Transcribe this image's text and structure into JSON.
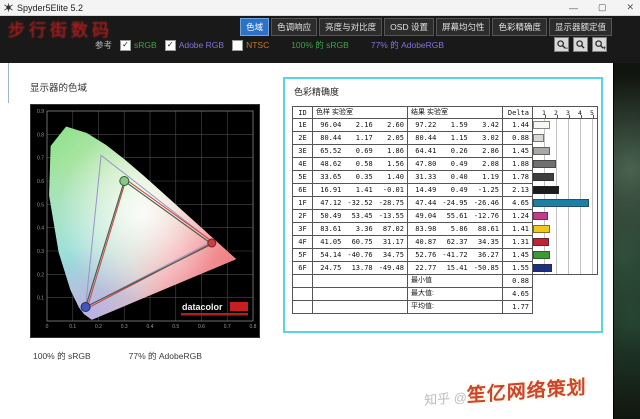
{
  "window": {
    "title": "Spyder5Elite 5.2",
    "controls": {
      "minimize": "—",
      "maximize": "▢",
      "close": "✕"
    }
  },
  "watermark_top": {
    "text": "步行街数码",
    "color": "#9c1d1d"
  },
  "tabs": [
    {
      "label": "色域",
      "active": true
    },
    {
      "label": "色调响应",
      "active": false
    },
    {
      "label": "亮度与对比度",
      "active": false
    },
    {
      "label": "OSD 设置",
      "active": false
    },
    {
      "label": "屏幕均匀性",
      "active": false
    },
    {
      "label": "色彩精确度",
      "active": false
    },
    {
      "label": "显示器额定值",
      "active": false
    }
  ],
  "reference": {
    "label": "参考",
    "checkboxes": [
      {
        "label": "sRGB",
        "checked": true,
        "color": "#43a047"
      },
      {
        "label": "Adobe RGB",
        "checked": true,
        "color": "#8273dd"
      },
      {
        "label": "NTSC",
        "checked": false,
        "color": "#c07a30"
      }
    ],
    "stats": [
      {
        "text": "100% 的 sRGB",
        "color": "#43a047"
      },
      {
        "text": "77% 的 AdobeRGB",
        "color": "#8273dd"
      }
    ]
  },
  "toolbar_icons": [
    {
      "name": "magnifier-minus-icon",
      "sign": "−"
    },
    {
      "name": "magnifier-icon",
      "sign": ""
    },
    {
      "name": "magnifier-plus-icon",
      "sign": "+"
    }
  ],
  "left_panel": {
    "title": "显示器的色域",
    "captions": {
      "srgb": "100% 的 sRGB",
      "argb": "77% 的 AdobeRGB"
    },
    "logo": "datacolor"
  },
  "right_panel": {
    "title": "色彩精确度",
    "table": {
      "headers": {
        "id": "ID",
        "sample": "色样 实验室",
        "result": "结果 实验室",
        "delta": "Delta E"
      },
      "scale": [
        1,
        2,
        3,
        4,
        5
      ],
      "rows": [
        {
          "id": "1E",
          "sample": [
            "96.04",
            "2.16",
            "2.60"
          ],
          "result": [
            "97.22",
            "1.59",
            "3.42"
          ],
          "delta": "1.44",
          "color": "#f8f8f2"
        },
        {
          "id": "2E",
          "sample": [
            "80.44",
            "1.17",
            "2.05"
          ],
          "result": [
            "80.44",
            "1.15",
            "3.02"
          ],
          "delta": "0.88",
          "color": "#d8d8d4"
        },
        {
          "id": "3E",
          "sample": [
            "65.52",
            "0.69",
            "1.86"
          ],
          "result": [
            "64.41",
            "0.26",
            "2.86"
          ],
          "delta": "1.45",
          "color": "#a8a8a4"
        },
        {
          "id": "4E",
          "sample": [
            "48.62",
            "0.58",
            "1.56"
          ],
          "result": [
            "47.80",
            "0.49",
            "2.08"
          ],
          "delta": "1.88",
          "color": "#707070"
        },
        {
          "id": "5E",
          "sample": [
            "33.65",
            "0.35",
            "1.40"
          ],
          "result": [
            "31.33",
            "0.40",
            "1.19"
          ],
          "delta": "1.78",
          "color": "#3e3e3e"
        },
        {
          "id": "6E",
          "sample": [
            "16.91",
            "1.41",
            "-0.01"
          ],
          "result": [
            "14.49",
            "0.49",
            "-1.25"
          ],
          "delta": "2.13",
          "color": "#1c1c1c"
        },
        {
          "id": "1F",
          "sample": [
            "47.12",
            "-32.52",
            "-28.75"
          ],
          "result": [
            "47.44",
            "-24.95",
            "-26.46"
          ],
          "delta": "4.65",
          "color": "#1b7fa6"
        },
        {
          "id": "2F",
          "sample": [
            "50.49",
            "53.45",
            "-13.55"
          ],
          "result": [
            "49.04",
            "55.61",
            "-12.76"
          ],
          "delta": "1.24",
          "color": "#c43b8e"
        },
        {
          "id": "3F",
          "sample": [
            "83.61",
            "3.36",
            "87.02"
          ],
          "result": [
            "83.98",
            "5.86",
            "88.61"
          ],
          "delta": "1.41",
          "color": "#f2c61f"
        },
        {
          "id": "4F",
          "sample": [
            "41.05",
            "60.75",
            "31.17"
          ],
          "result": [
            "40.87",
            "62.37",
            "34.35"
          ],
          "delta": "1.31",
          "color": "#c22333"
        },
        {
          "id": "5F",
          "sample": [
            "54.14",
            "-40.76",
            "34.75"
          ],
          "result": [
            "52.76",
            "-41.72",
            "36.27"
          ],
          "delta": "1.45",
          "color": "#3c9a33"
        },
        {
          "id": "6F",
          "sample": [
            "24.75",
            "13.78",
            "-49.48"
          ],
          "result": [
            "22.77",
            "15.41",
            "-50.85"
          ],
          "delta": "1.55",
          "color": "#1c2f80"
        }
      ],
      "summary": [
        {
          "label": "最小值",
          "value": "0.88"
        },
        {
          "label": "最大值:",
          "value": "4.65"
        },
        {
          "label": "平均值:",
          "value": "1.77"
        }
      ]
    }
  },
  "watermark_bottom": {
    "prefix": "知乎 @",
    "name": "笙亿网络策划"
  }
}
